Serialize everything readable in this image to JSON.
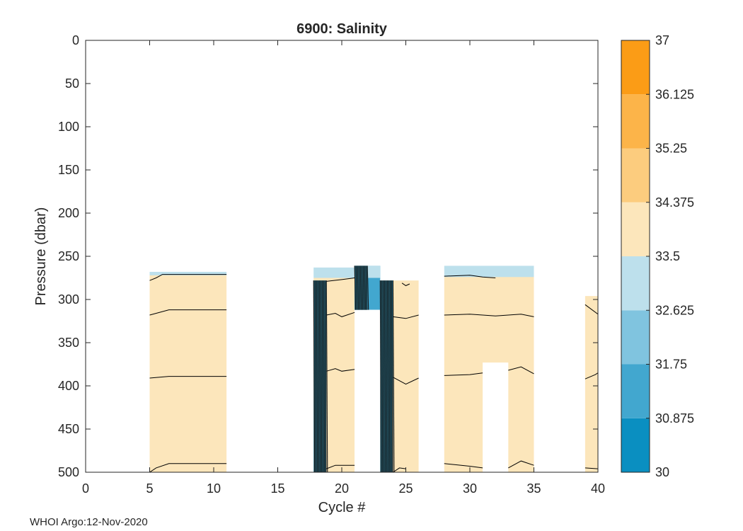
{
  "chart_data": {
    "type": "heatmap",
    "subtype": "filled-contour",
    "title": "6900:  Salinity",
    "xlabel": "Cycle #",
    "ylabel": "Pressure (dbar)",
    "xlim": [
      0,
      40
    ],
    "ylim": [
      0,
      500
    ],
    "y_reversed": true,
    "xticks": [
      0,
      5,
      10,
      15,
      20,
      25,
      30,
      35,
      40
    ],
    "yticks": [
      0,
      50,
      100,
      150,
      200,
      250,
      300,
      350,
      400,
      450,
      500
    ],
    "colorbar": {
      "range": [
        30,
        37
      ],
      "levels": [
        30,
        30.875,
        31.75,
        32.625,
        33.5,
        34.375,
        35.25,
        36.125,
        37
      ],
      "tick_labels": [
        "30",
        "30.875",
        "31.75",
        "32.625",
        "33.5",
        "34.375",
        "35.25",
        "36.125",
        "37"
      ],
      "colors": [
        "#0a8fc1",
        "#42a7cf",
        "#80c4df",
        "#bde0ec",
        "#fce6bb",
        "#fccc7e",
        "#fcb449",
        "#fb9c16"
      ]
    },
    "regions": [
      {
        "x": [
          5,
          11
        ],
        "p_top": 270,
        "p_bottom": 500,
        "fill_level": 33.5,
        "surface_layer": {
          "p_top": 268,
          "p_bottom": 272,
          "level": 32.625
        }
      },
      {
        "x": [
          17.8,
          21
        ],
        "p_top": 275,
        "p_bottom": 500,
        "fill_level": 33.5,
        "surface_layer": {
          "p_top": 263,
          "p_bottom": 275,
          "level": 32.625
        }
      },
      {
        "x": [
          21,
          23
        ],
        "p_top": 261,
        "p_bottom": 312,
        "fill_level": 31.2,
        "surface_layer": {
          "p_top": 261,
          "p_bottom": 275,
          "level": 32.625
        }
      },
      {
        "x": [
          23,
          26
        ],
        "p_top": 278,
        "p_bottom": 500,
        "fill_level": 33.5
      },
      {
        "x": [
          28,
          35
        ],
        "p_top": 272,
        "p_bottom": 500,
        "fill_level": 33.5,
        "surface_layer": {
          "p_top": 261,
          "p_bottom": 274,
          "level": 32.625
        }
      },
      {
        "x": [
          39,
          40
        ],
        "p_top": 296,
        "p_bottom": 500,
        "fill_level": 33.5
      }
    ],
    "gaps": [
      {
        "x": [
          21,
          23
        ],
        "p_top": 312,
        "p_bottom": 500
      },
      {
        "x": [
          31,
          33
        ],
        "p_top": 373,
        "p_bottom": 500
      }
    ],
    "gradient_bands": [
      {
        "x": [
          17.8,
          18.8
        ],
        "p_top": 278,
        "p_bottom": 500
      },
      {
        "x": [
          21,
          22
        ],
        "p_top": 261,
        "p_bottom": 312
      },
      {
        "x": [
          23,
          24
        ],
        "p_top": 278,
        "p_bottom": 500
      }
    ],
    "contour_lines": [
      {
        "level": 33.6,
        "points": [
          [
            5,
            278
          ],
          [
            5.5,
            275
          ],
          [
            6,
            271
          ],
          [
            11,
            271
          ]
        ]
      },
      {
        "level": 33.7,
        "points": [
          [
            5,
            318
          ],
          [
            6.5,
            312
          ],
          [
            11,
            312
          ]
        ]
      },
      {
        "level": 33.8,
        "points": [
          [
            5,
            391
          ],
          [
            6.5,
            389
          ],
          [
            11,
            389
          ]
        ]
      },
      {
        "level": 33.9,
        "points": [
          [
            5,
            500
          ],
          [
            5.5,
            495
          ],
          [
            6.5,
            490
          ],
          [
            11,
            490
          ]
        ]
      },
      {
        "level": 33.6,
        "points": [
          [
            18.8,
            279
          ],
          [
            20,
            277
          ],
          [
            21,
            275
          ]
        ]
      },
      {
        "level": 33.7,
        "points": [
          [
            18.8,
            318
          ],
          [
            19.5,
            316
          ],
          [
            20,
            320
          ],
          [
            21,
            315
          ]
        ]
      },
      {
        "level": 33.8,
        "points": [
          [
            18.8,
            383
          ],
          [
            19.5,
            380
          ],
          [
            20,
            383
          ],
          [
            21,
            381
          ]
        ]
      },
      {
        "level": 33.9,
        "points": [
          [
            18.8,
            496
          ],
          [
            19.5,
            492
          ],
          [
            21,
            492
          ]
        ]
      },
      {
        "level": 33.7,
        "points": [
          [
            24,
            320
          ],
          [
            25,
            322
          ],
          [
            26,
            318
          ]
        ]
      },
      {
        "level": 33.8,
        "points": [
          [
            24,
            390
          ],
          [
            25,
            398
          ],
          [
            26,
            391
          ]
        ]
      },
      {
        "level": 33.9,
        "points": [
          [
            24,
            500
          ],
          [
            24.5,
            495
          ],
          [
            25,
            496
          ]
        ]
      },
      {
        "level": 33.6,
        "points": [
          [
            24.7,
            281
          ],
          [
            25,
            284
          ],
          [
            25.3,
            282
          ]
        ]
      },
      {
        "level": 33.6,
        "points": [
          [
            28,
            273
          ],
          [
            30,
            272
          ],
          [
            31,
            274
          ],
          [
            32,
            275
          ]
        ]
      },
      {
        "level": 33.7,
        "points": [
          [
            28,
            318
          ],
          [
            30,
            317
          ],
          [
            32,
            319
          ],
          [
            34,
            317
          ],
          [
            35,
            320
          ]
        ]
      },
      {
        "level": 33.8,
        "points": [
          [
            28,
            388
          ],
          [
            30,
            387
          ],
          [
            31,
            385
          ]
        ]
      },
      {
        "level": 33.8,
        "points": [
          [
            33,
            382
          ],
          [
            34,
            378
          ],
          [
            35,
            386
          ]
        ]
      },
      {
        "level": 33.9,
        "points": [
          [
            28,
            490
          ],
          [
            30,
            493
          ],
          [
            31,
            495
          ]
        ]
      },
      {
        "level": 33.9,
        "points": [
          [
            33,
            495
          ],
          [
            34,
            487
          ],
          [
            35,
            492
          ]
        ]
      },
      {
        "level": 33.7,
        "points": [
          [
            39,
            306
          ],
          [
            40,
            317
          ]
        ]
      },
      {
        "level": 33.8,
        "points": [
          [
            39,
            392
          ],
          [
            39.8,
            387
          ],
          [
            40,
            385
          ]
        ]
      },
      {
        "level": 33.9,
        "points": [
          [
            39,
            495
          ],
          [
            40,
            496
          ]
        ]
      }
    ]
  },
  "footer": "WHOI Argo:12-Nov-2020"
}
